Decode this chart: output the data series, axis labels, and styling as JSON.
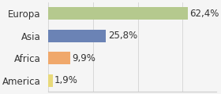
{
  "categories": [
    "America",
    "Africa",
    "Asia",
    "Europa"
  ],
  "values": [
    1.9,
    9.9,
    25.8,
    62.4
  ],
  "labels": [
    "1,9%",
    "9,9%",
    "25,8%",
    "62,4%"
  ],
  "bar_colors": [
    "#e8d97a",
    "#f0a86b",
    "#6b83b5",
    "#b5c98e"
  ],
  "background_color": "#f5f5f5",
  "xlim": [
    0,
    75
  ],
  "bar_height": 0.55,
  "label_fontsize": 8.5,
  "tick_fontsize": 8.5
}
